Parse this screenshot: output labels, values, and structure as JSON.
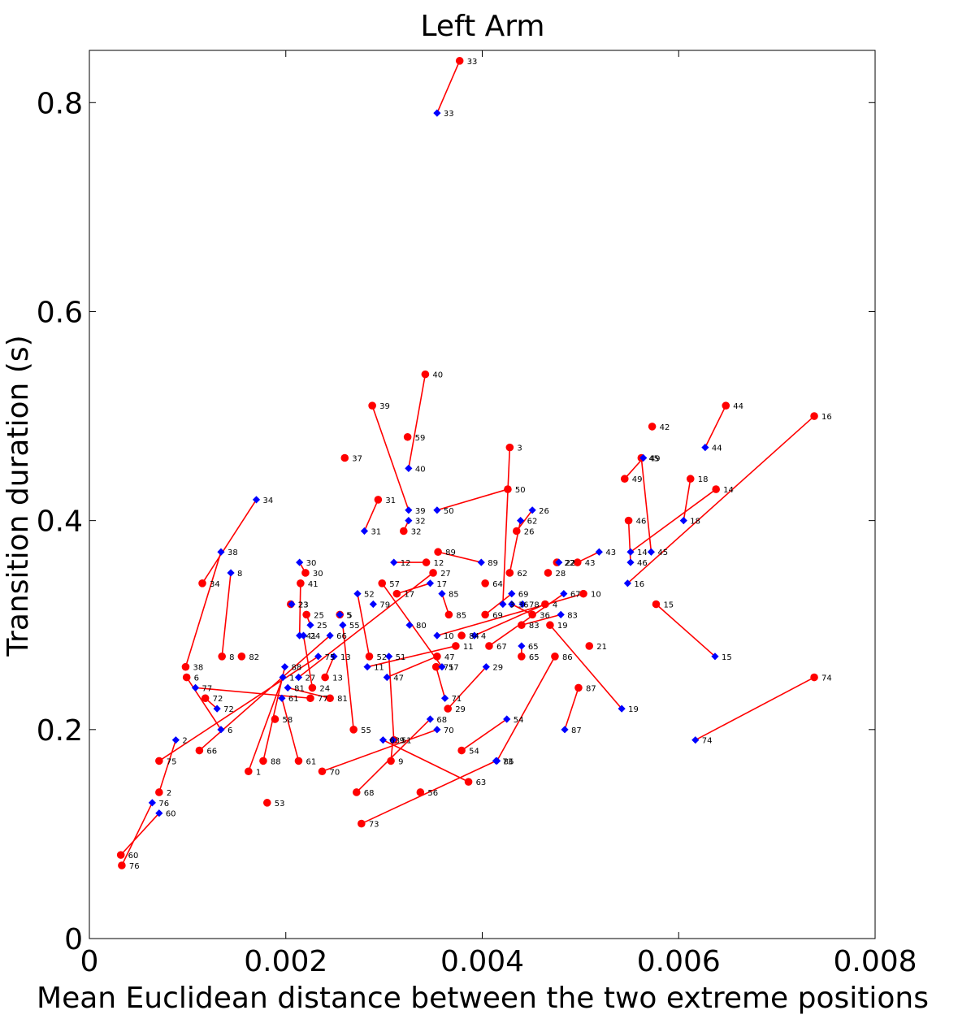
{
  "chart_data": {
    "type": "scatter",
    "title": "Left Arm",
    "xlabel": "Mean Euclidean distance between the two extreme positions",
    "ylabel": "Transition duration (s)",
    "xlim": [
      0,
      0.008
    ],
    "ylim": [
      0,
      0.85
    ],
    "xticks": [
      0,
      0.002,
      0.004,
      0.006,
      0.008
    ],
    "xtick_labels": [
      "0",
      "0.002",
      "0.004",
      "0.006",
      "0.008"
    ],
    "yticks": [
      0,
      0.2,
      0.4,
      0.6,
      0.8
    ],
    "ytick_labels": [
      "0",
      "0.2",
      "0.4",
      "0.6",
      "0.8"
    ],
    "grid": false,
    "legend": "none",
    "colors": {
      "red_series": "#ff0000",
      "blue_series": "#0000ff",
      "connector": "#ff0000"
    },
    "series": [
      {
        "marker": "circle",
        "color": "#ff0000",
        "points": [
          {
            "id": "1",
            "x": 0.00162,
            "y": 0.16
          },
          {
            "id": "2",
            "x": 0.00071,
            "y": 0.14
          },
          {
            "id": "3",
            "x": 0.00428,
            "y": 0.47
          },
          {
            "id": "4",
            "x": 0.00464,
            "y": 0.32
          },
          {
            "id": "5",
            "x": 0.00255,
            "y": 0.31
          },
          {
            "id": "6",
            "x": 0.00099,
            "y": 0.25
          },
          {
            "id": "8",
            "x": 0.00135,
            "y": 0.27
          },
          {
            "id": "10",
            "x": 0.00503,
            "y": 0.33
          },
          {
            "id": "11",
            "x": 0.00373,
            "y": 0.28
          },
          {
            "id": "12",
            "x": 0.00343,
            "y": 0.36
          },
          {
            "id": "13",
            "x": 0.0024,
            "y": 0.25
          },
          {
            "id": "14",
            "x": 0.00638,
            "y": 0.43
          },
          {
            "id": "15",
            "x": 0.00577,
            "y": 0.32
          },
          {
            "id": "16",
            "x": 0.00738,
            "y": 0.5
          },
          {
            "id": "17",
            "x": 0.00313,
            "y": 0.33
          },
          {
            "id": "18",
            "x": 0.00612,
            "y": 0.44
          },
          {
            "id": "19",
            "x": 0.00469,
            "y": 0.3
          },
          {
            "id": "21",
            "x": 0.00509,
            "y": 0.28
          },
          {
            "id": "22",
            "x": 0.00476,
            "y": 0.36
          },
          {
            "id": "23",
            "x": 0.00205,
            "y": 0.32
          },
          {
            "id": "24",
            "x": 0.00227,
            "y": 0.24
          },
          {
            "id": "25",
            "x": 0.00221,
            "y": 0.31
          },
          {
            "id": "26",
            "x": 0.00435,
            "y": 0.39
          },
          {
            "id": "27",
            "x": 0.0035,
            "y": 0.35
          },
          {
            "id": "28",
            "x": 0.00467,
            "y": 0.35
          },
          {
            "id": "29",
            "x": 0.00365,
            "y": 0.22
          },
          {
            "id": "30",
            "x": 0.0022,
            "y": 0.35
          },
          {
            "id": "31",
            "x": 0.00294,
            "y": 0.42
          },
          {
            "id": "32",
            "x": 0.0032,
            "y": 0.39
          },
          {
            "id": "33",
            "x": 0.00377,
            "y": 0.84
          },
          {
            "id": "34",
            "x": 0.00115,
            "y": 0.34
          },
          {
            "id": "36",
            "x": 0.00451,
            "y": 0.31
          },
          {
            "id": "37",
            "x": 0.0026,
            "y": 0.46
          },
          {
            "id": "38",
            "x": 0.00098,
            "y": 0.26
          },
          {
            "id": "39",
            "x": 0.00288,
            "y": 0.51
          },
          {
            "id": "40",
            "x": 0.00342,
            "y": 0.54
          },
          {
            "id": "41",
            "x": 0.00215,
            "y": 0.34
          },
          {
            "id": "42",
            "x": 0.00573,
            "y": 0.49
          },
          {
            "id": "43",
            "x": 0.00497,
            "y": 0.36
          },
          {
            "id": "44",
            "x": 0.00648,
            "y": 0.51
          },
          {
            "id": "45",
            "x": 0.00562,
            "y": 0.46
          },
          {
            "id": "46",
            "x": 0.00549,
            "y": 0.4
          },
          {
            "id": "47",
            "x": 0.00354,
            "y": 0.27
          },
          {
            "id": "49",
            "x": 0.00545,
            "y": 0.44
          },
          {
            "id": "50",
            "x": 0.00426,
            "y": 0.43
          },
          {
            "id": "51",
            "x": 0.0031,
            "y": 0.19
          },
          {
            "id": "52",
            "x": 0.00285,
            "y": 0.27
          },
          {
            "id": "53",
            "x": 0.00181,
            "y": 0.13
          },
          {
            "id": "54",
            "x": 0.00379,
            "y": 0.18
          },
          {
            "id": "55",
            "x": 0.00269,
            "y": 0.2
          },
          {
            "id": "56",
            "x": 0.00337,
            "y": 0.14
          },
          {
            "id": "57",
            "x": 0.00298,
            "y": 0.34
          },
          {
            "id": "58",
            "x": 0.00189,
            "y": 0.21
          },
          {
            "id": "59",
            "x": 0.00324,
            "y": 0.48
          },
          {
            "id": "60",
            "x": 0.00032,
            "y": 0.08
          },
          {
            "id": "61",
            "x": 0.00213,
            "y": 0.17
          },
          {
            "id": "62",
            "x": 0.00428,
            "y": 0.35
          },
          {
            "id": "63",
            "x": 0.00386,
            "y": 0.15
          },
          {
            "id": "64",
            "x": 0.00403,
            "y": 0.34
          },
          {
            "id": "65",
            "x": 0.0044,
            "y": 0.27
          },
          {
            "id": "66",
            "x": 0.00112,
            "y": 0.18
          },
          {
            "id": "67",
            "x": 0.00407,
            "y": 0.28
          },
          {
            "id": "68",
            "x": 0.00272,
            "y": 0.14
          },
          {
            "id": "69",
            "x": 0.00403,
            "y": 0.31
          },
          {
            "id": "70",
            "x": 0.00237,
            "y": 0.16
          },
          {
            "id": "71",
            "x": 0.00353,
            "y": 0.26
          },
          {
            "id": "72",
            "x": 0.00118,
            "y": 0.23
          },
          {
            "id": "73",
            "x": 0.00277,
            "y": 0.11
          },
          {
            "id": "74",
            "x": 0.00738,
            "y": 0.25
          },
          {
            "id": "75",
            "x": 0.00071,
            "y": 0.17
          },
          {
            "id": "76",
            "x": 0.00033,
            "y": 0.07
          },
          {
            "id": "77",
            "x": 0.00225,
            "y": 0.23
          },
          {
            "id": "81",
            "x": 0.00245,
            "y": 0.23
          },
          {
            "id": "82",
            "x": 0.00155,
            "y": 0.27
          },
          {
            "id": "83",
            "x": 0.0044,
            "y": 0.3
          },
          {
            "id": "84",
            "x": 0.00379,
            "y": 0.29
          },
          {
            "id": "85",
            "x": 0.00366,
            "y": 0.31
          },
          {
            "id": "86",
            "x": 0.00474,
            "y": 0.27
          },
          {
            "id": "87",
            "x": 0.00498,
            "y": 0.24
          },
          {
            "id": "88",
            "x": 0.00177,
            "y": 0.17
          },
          {
            "id": "89",
            "x": 0.00355,
            "y": 0.37
          },
          {
            "id": "9",
            "x": 0.00307,
            "y": 0.17
          }
        ]
      },
      {
        "marker": "diamond",
        "color": "#0000ff",
        "points": [
          {
            "id": "1",
            "x": 0.00197,
            "y": 0.25
          },
          {
            "id": "2",
            "x": 0.00088,
            "y": 0.19
          },
          {
            "id": "3",
            "x": 0.00421,
            "y": 0.32
          },
          {
            "id": "4",
            "x": 0.00392,
            "y": 0.29
          },
          {
            "id": "5",
            "x": 0.00255,
            "y": 0.31
          },
          {
            "id": "6",
            "x": 0.00134,
            "y": 0.2
          },
          {
            "id": "8",
            "x": 0.00144,
            "y": 0.35
          },
          {
            "id": "10",
            "x": 0.00354,
            "y": 0.29
          },
          {
            "id": "11",
            "x": 0.00283,
            "y": 0.26
          },
          {
            "id": "12",
            "x": 0.0031,
            "y": 0.36
          },
          {
            "id": "13",
            "x": 0.00249,
            "y": 0.27
          },
          {
            "id": "14",
            "x": 0.00551,
            "y": 0.37
          },
          {
            "id": "15",
            "x": 0.00637,
            "y": 0.27
          },
          {
            "id": "16",
            "x": 0.00548,
            "y": 0.34
          },
          {
            "id": "17",
            "x": 0.00347,
            "y": 0.34
          },
          {
            "id": "18",
            "x": 0.00605,
            "y": 0.4
          },
          {
            "id": "19",
            "x": 0.00542,
            "y": 0.22
          },
          {
            "id": "22",
            "x": 0.00478,
            "y": 0.36
          },
          {
            "id": "23",
            "x": 0.00206,
            "y": 0.32
          },
          {
            "id": "25",
            "x": 0.00225,
            "y": 0.3
          },
          {
            "id": "26",
            "x": 0.00451,
            "y": 0.41
          },
          {
            "id": "27",
            "x": 0.00213,
            "y": 0.25
          },
          {
            "id": "29",
            "x": 0.00404,
            "y": 0.26
          },
          {
            "id": "30",
            "x": 0.00214,
            "y": 0.36
          },
          {
            "id": "31",
            "x": 0.0028,
            "y": 0.39
          },
          {
            "id": "32",
            "x": 0.00325,
            "y": 0.4
          },
          {
            "id": "33",
            "x": 0.00354,
            "y": 0.79
          },
          {
            "id": "34",
            "x": 0.0017,
            "y": 0.42
          },
          {
            "id": "38",
            "x": 0.00134,
            "y": 0.37
          },
          {
            "id": "39",
            "x": 0.00325,
            "y": 0.41
          },
          {
            "id": "40",
            "x": 0.00325,
            "y": 0.45
          },
          {
            "id": "43",
            "x": 0.00519,
            "y": 0.37
          },
          {
            "id": "44",
            "x": 0.00627,
            "y": 0.47
          },
          {
            "id": "45",
            "x": 0.00572,
            "y": 0.37
          },
          {
            "id": "46",
            "x": 0.00551,
            "y": 0.36
          },
          {
            "id": "47",
            "x": 0.00303,
            "y": 0.25
          },
          {
            "id": "49",
            "x": 0.00564,
            "y": 0.46
          },
          {
            "id": "50",
            "x": 0.00354,
            "y": 0.41
          },
          {
            "id": "51",
            "x": 0.00305,
            "y": 0.27
          },
          {
            "id": "52",
            "x": 0.00273,
            "y": 0.33
          },
          {
            "id": "54",
            "x": 0.00425,
            "y": 0.21
          },
          {
            "id": "55",
            "x": 0.00258,
            "y": 0.3
          },
          {
            "id": "60",
            "x": 0.00071,
            "y": 0.12
          },
          {
            "id": "61",
            "x": 0.00196,
            "y": 0.23
          },
          {
            "id": "62",
            "x": 0.00439,
            "y": 0.4
          },
          {
            "id": "63",
            "x": 0.00299,
            "y": 0.19
          },
          {
            "id": "65",
            "x": 0.0044,
            "y": 0.28
          },
          {
            "id": "66",
            "x": 0.00245,
            "y": 0.29
          },
          {
            "id": "67",
            "x": 0.00483,
            "y": 0.33
          },
          {
            "id": "68",
            "x": 0.00347,
            "y": 0.21
          },
          {
            "id": "69",
            "x": 0.0043,
            "y": 0.33
          },
          {
            "id": "70",
            "x": 0.00354,
            "y": 0.2
          },
          {
            "id": "71",
            "x": 0.00362,
            "y": 0.23
          },
          {
            "id": "72",
            "x": 0.0013,
            "y": 0.22
          },
          {
            "id": "73",
            "x": 0.00414,
            "y": 0.17
          },
          {
            "id": "74",
            "x": 0.00617,
            "y": 0.19
          },
          {
            "id": "75",
            "x": 0.00233,
            "y": 0.27
          },
          {
            "id": "76",
            "x": 0.00064,
            "y": 0.13
          },
          {
            "id": "77",
            "x": 0.00108,
            "y": 0.24
          },
          {
            "id": "78",
            "x": 0.00441,
            "y": 0.32
          },
          {
            "id": "79",
            "x": 0.00289,
            "y": 0.32
          },
          {
            "id": "80",
            "x": 0.00326,
            "y": 0.3
          },
          {
            "id": "83",
            "x": 0.0048,
            "y": 0.31
          },
          {
            "id": "85",
            "x": 0.00359,
            "y": 0.33
          },
          {
            "id": "86",
            "x": 0.00415,
            "y": 0.17
          },
          {
            "id": "87",
            "x": 0.00484,
            "y": 0.2
          },
          {
            "id": "88",
            "x": 0.00199,
            "y": 0.26
          },
          {
            "id": "89",
            "x": 0.00399,
            "y": 0.36
          },
          {
            "id": "81",
            "x": 0.00202,
            "y": 0.24
          },
          {
            "id": "24",
            "x": 0.00218,
            "y": 0.29
          },
          {
            "id": "41",
            "x": 0.00214,
            "y": 0.29
          },
          {
            "id": "57",
            "x": 0.00359,
            "y": 0.26
          },
          {
            "id": "9",
            "x": 0.00309,
            "y": 0.19
          },
          {
            "id": "36",
            "x": 0.0043,
            "y": 0.32
          }
        ]
      }
    ]
  }
}
